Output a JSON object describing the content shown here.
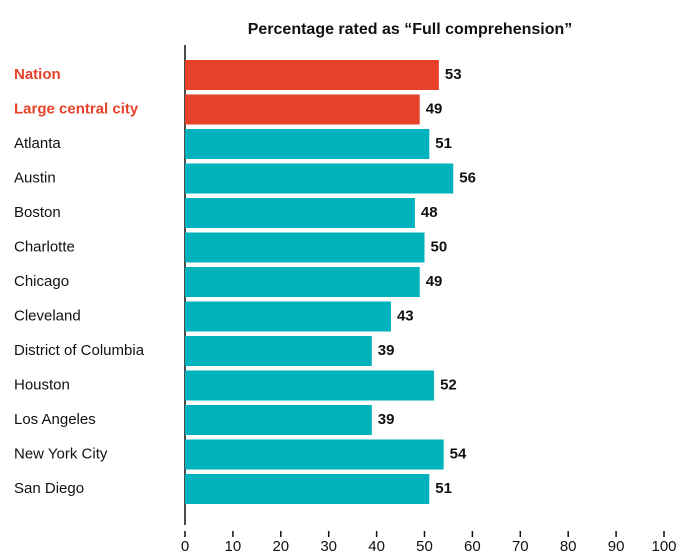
{
  "chart_data": {
    "type": "bar",
    "orientation": "horizontal",
    "title": "Percentage rated as “Full comprehension”",
    "categories": [
      "Nation",
      "Large central city",
      "Atlanta",
      "Austin",
      "Boston",
      "Charlotte",
      "Chicago",
      "Cleveland",
      "District of Columbia",
      "Houston",
      "Los Angeles",
      "New York City",
      "San Diego"
    ],
    "values": [
      53,
      49,
      51,
      56,
      48,
      50,
      49,
      43,
      39,
      52,
      39,
      54,
      51
    ],
    "colors": [
      "#e8412a",
      "#e8412a",
      "#00b2bb",
      "#00b2bb",
      "#00b2bb",
      "#00b2bb",
      "#00b2bb",
      "#00b2bb",
      "#00b2bb",
      "#00b2bb",
      "#00b2bb",
      "#00b2bb",
      "#00b2bb"
    ],
    "xlim": [
      0,
      100
    ],
    "xticks": [
      0,
      10,
      20,
      30,
      40,
      50,
      60,
      70,
      80,
      90,
      100
    ],
    "grid": false
  }
}
